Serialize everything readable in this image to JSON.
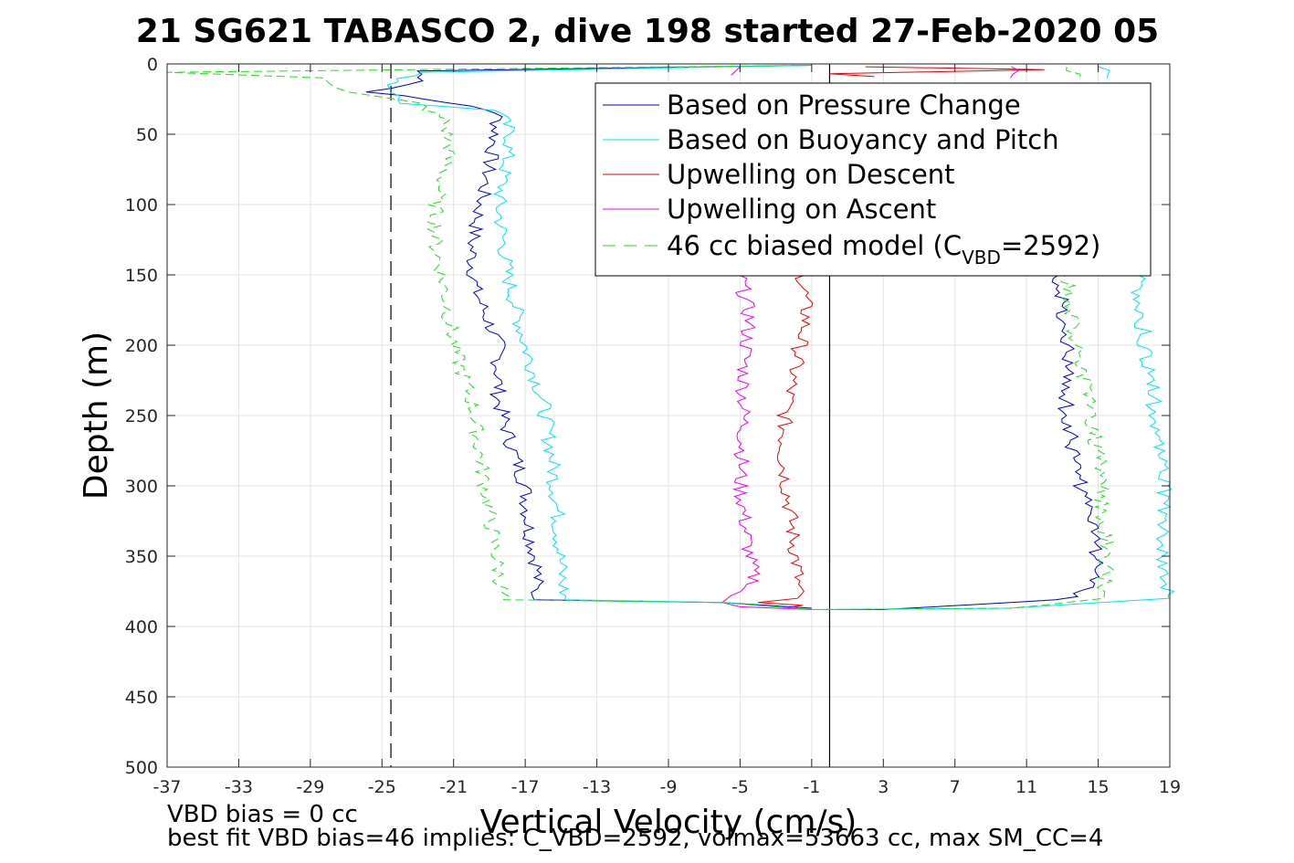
{
  "title": "21 SG621 TABASCO 2, dive 198 started 27-Feb-2020 05",
  "footer": {
    "vbd_bias": "VBD bias = 0 cc",
    "best_fit": "best fit VBD bias=46 implies: C_VBD=2592, volmax=53663 cc, max SM_CC=4"
  },
  "chart_data": {
    "type": "line",
    "title": "21 SG621 TABASCO 2, dive 198 started 27-Feb-2020 05",
    "xlabel": "Vertical Velocity (cm/s)",
    "ylabel": "Depth (m)",
    "xlim": [
      -37,
      19
    ],
    "ylim": [
      0,
      500
    ],
    "y_reversed": true,
    "grid": true,
    "x_ticks": [
      "-37",
      "-33",
      "-29",
      "-25",
      "-21",
      "-17",
      "-13",
      "-9",
      "-5",
      "-1",
      "3",
      "7",
      "11",
      "15",
      "19"
    ],
    "y_ticks": [
      "0",
      "50",
      "100",
      "150",
      "200",
      "250",
      "300",
      "350",
      "400",
      "450",
      "500"
    ],
    "legend": {
      "placement": "top-right",
      "entries": [
        {
          "label": "Based on Pressure Change",
          "color": "#0000cc",
          "style": "solid"
        },
        {
          "label": "Based on Buoyancy and Pitch",
          "color": "#00e5ee",
          "style": "solid"
        },
        {
          "label": "Upwelling on Descent",
          "color": "#ee0000",
          "style": "solid"
        },
        {
          "label": "Upwelling on Ascent",
          "color": "#ee00ee",
          "style": "solid"
        },
        {
          "label": "46 cc biased model (C",
          "sub": "VBD",
          "suffix": "=2592)",
          "color": "#22dd22",
          "style": "dashed"
        }
      ]
    },
    "reference_lines": [
      {
        "x": -24.5,
        "style": "dashed",
        "color": "#000000"
      },
      {
        "x": 0.0,
        "style": "solid",
        "color": "#000000"
      }
    ],
    "series": [
      {
        "name": "Based on Pressure Change",
        "color": "#0000cc",
        "style": "solid",
        "descent": [
          [
            -1,
            1
          ],
          [
            -23,
            5
          ],
          [
            -22.5,
            12
          ],
          [
            -25.5,
            20
          ],
          [
            -20,
            30
          ],
          [
            -18.5,
            35
          ],
          [
            -18.8,
            60
          ],
          [
            -19.5,
            100
          ],
          [
            -20,
            130
          ],
          [
            -19.8,
            160
          ],
          [
            -18.5,
            200
          ],
          [
            -18.5,
            240
          ],
          [
            -17.8,
            270
          ],
          [
            -17,
            300
          ],
          [
            -16.8,
            330
          ],
          [
            -16.3,
            360
          ],
          [
            -16.5,
            381
          ],
          [
            -6,
            383
          ],
          [
            -1,
            387
          ]
        ],
        "ascent": [
          [
            -1,
            388
          ],
          [
            3,
            388
          ],
          [
            13,
            381
          ],
          [
            15,
            372
          ],
          [
            14.8,
            340
          ],
          [
            14,
            300
          ],
          [
            13.2,
            250
          ],
          [
            13.3,
            200
          ],
          [
            12.8,
            150
          ]
        ]
      },
      {
        "name": "Based on Buoyancy and Pitch",
        "color": "#00e5ee",
        "style": "solid",
        "descent": [
          [
            -1,
            1
          ],
          [
            -23,
            6
          ],
          [
            -24.5,
            15
          ],
          [
            -24,
            28
          ],
          [
            -18.5,
            33
          ],
          [
            -17.8,
            50
          ],
          [
            -18.5,
            100
          ],
          [
            -18,
            150
          ],
          [
            -17,
            200
          ],
          [
            -16,
            240
          ],
          [
            -15.5,
            280
          ],
          [
            -15.2,
            320
          ],
          [
            -15,
            360
          ],
          [
            -14.8,
            381
          ],
          [
            -6,
            383
          ],
          [
            -1,
            388
          ]
        ],
        "ascent": [
          [
            -1,
            388
          ],
          [
            10,
            387
          ],
          [
            19,
            380
          ],
          [
            18.6,
            360
          ],
          [
            18.8,
            320
          ],
          [
            18.5,
            280
          ],
          [
            18,
            230
          ],
          [
            17.5,
            190
          ],
          [
            17.2,
            150
          ]
        ],
        "surface_near": [
          [
            15.2,
            2
          ],
          [
            15.5,
            10
          ]
        ]
      },
      {
        "name": "Upwelling on Descent",
        "color": "#ee0000",
        "style": "solid",
        "descent": [
          [
            -1.5,
            150
          ],
          [
            -1.3,
            180
          ],
          [
            -2,
            220
          ],
          [
            -2.5,
            250
          ],
          [
            -2.6,
            280
          ],
          [
            -2.2,
            320
          ],
          [
            -1.8,
            360
          ],
          [
            -1.8,
            380
          ],
          [
            -4,
            383
          ],
          [
            -1.5,
            385
          ],
          [
            -2,
            386
          ]
        ],
        "surface": [
          [
            2,
            2
          ],
          [
            12,
            4
          ],
          [
            0,
            7
          ],
          [
            2.5,
            9
          ]
        ]
      },
      {
        "name": "Upwelling on Ascent",
        "color": "#ee00ee",
        "style": "solid",
        "segment": [
          [
            -5,
            150
          ],
          [
            -4.5,
            180
          ],
          [
            -4.8,
            220
          ],
          [
            -4.8,
            260
          ],
          [
            -5,
            300
          ],
          [
            -4.6,
            340
          ],
          [
            -4.2,
            370
          ],
          [
            -5.5,
            378
          ],
          [
            -6,
            383
          ],
          [
            -5,
            386
          ],
          [
            -1,
            388
          ]
        ],
        "surface": [
          [
            -5,
            2
          ],
          [
            -5.5,
            8
          ]
        ],
        "surface_right": [
          [
            10.3,
            2
          ],
          [
            10.1,
            10
          ]
        ]
      },
      {
        "name": "46 cc biased model",
        "color": "#22dd22",
        "style": "dashed",
        "descent": [
          [
            -1,
            1
          ],
          [
            -30,
            5
          ],
          [
            -37,
            6
          ],
          [
            -28,
            10
          ],
          [
            -27,
            20
          ],
          [
            -23,
            28
          ],
          [
            -21.5,
            40
          ],
          [
            -21.2,
            60
          ],
          [
            -22,
            100
          ],
          [
            -22,
            130
          ],
          [
            -21.5,
            160
          ],
          [
            -21,
            200
          ],
          [
            -20,
            240
          ],
          [
            -19.5,
            280
          ],
          [
            -19,
            320
          ],
          [
            -18.5,
            360
          ],
          [
            -18.2,
            381
          ],
          [
            -6,
            383
          ],
          [
            -1,
            388
          ]
        ],
        "ascent": [
          [
            -1,
            388
          ],
          [
            10,
            387
          ],
          [
            15,
            380
          ],
          [
            15.5,
            360
          ],
          [
            15.3,
            320
          ],
          [
            15,
            280
          ],
          [
            14.5,
            240
          ],
          [
            13.8,
            200
          ],
          [
            13.2,
            150
          ]
        ],
        "surface_near": [
          [
            13.5,
            2
          ],
          [
            14,
            10
          ]
        ]
      }
    ]
  }
}
